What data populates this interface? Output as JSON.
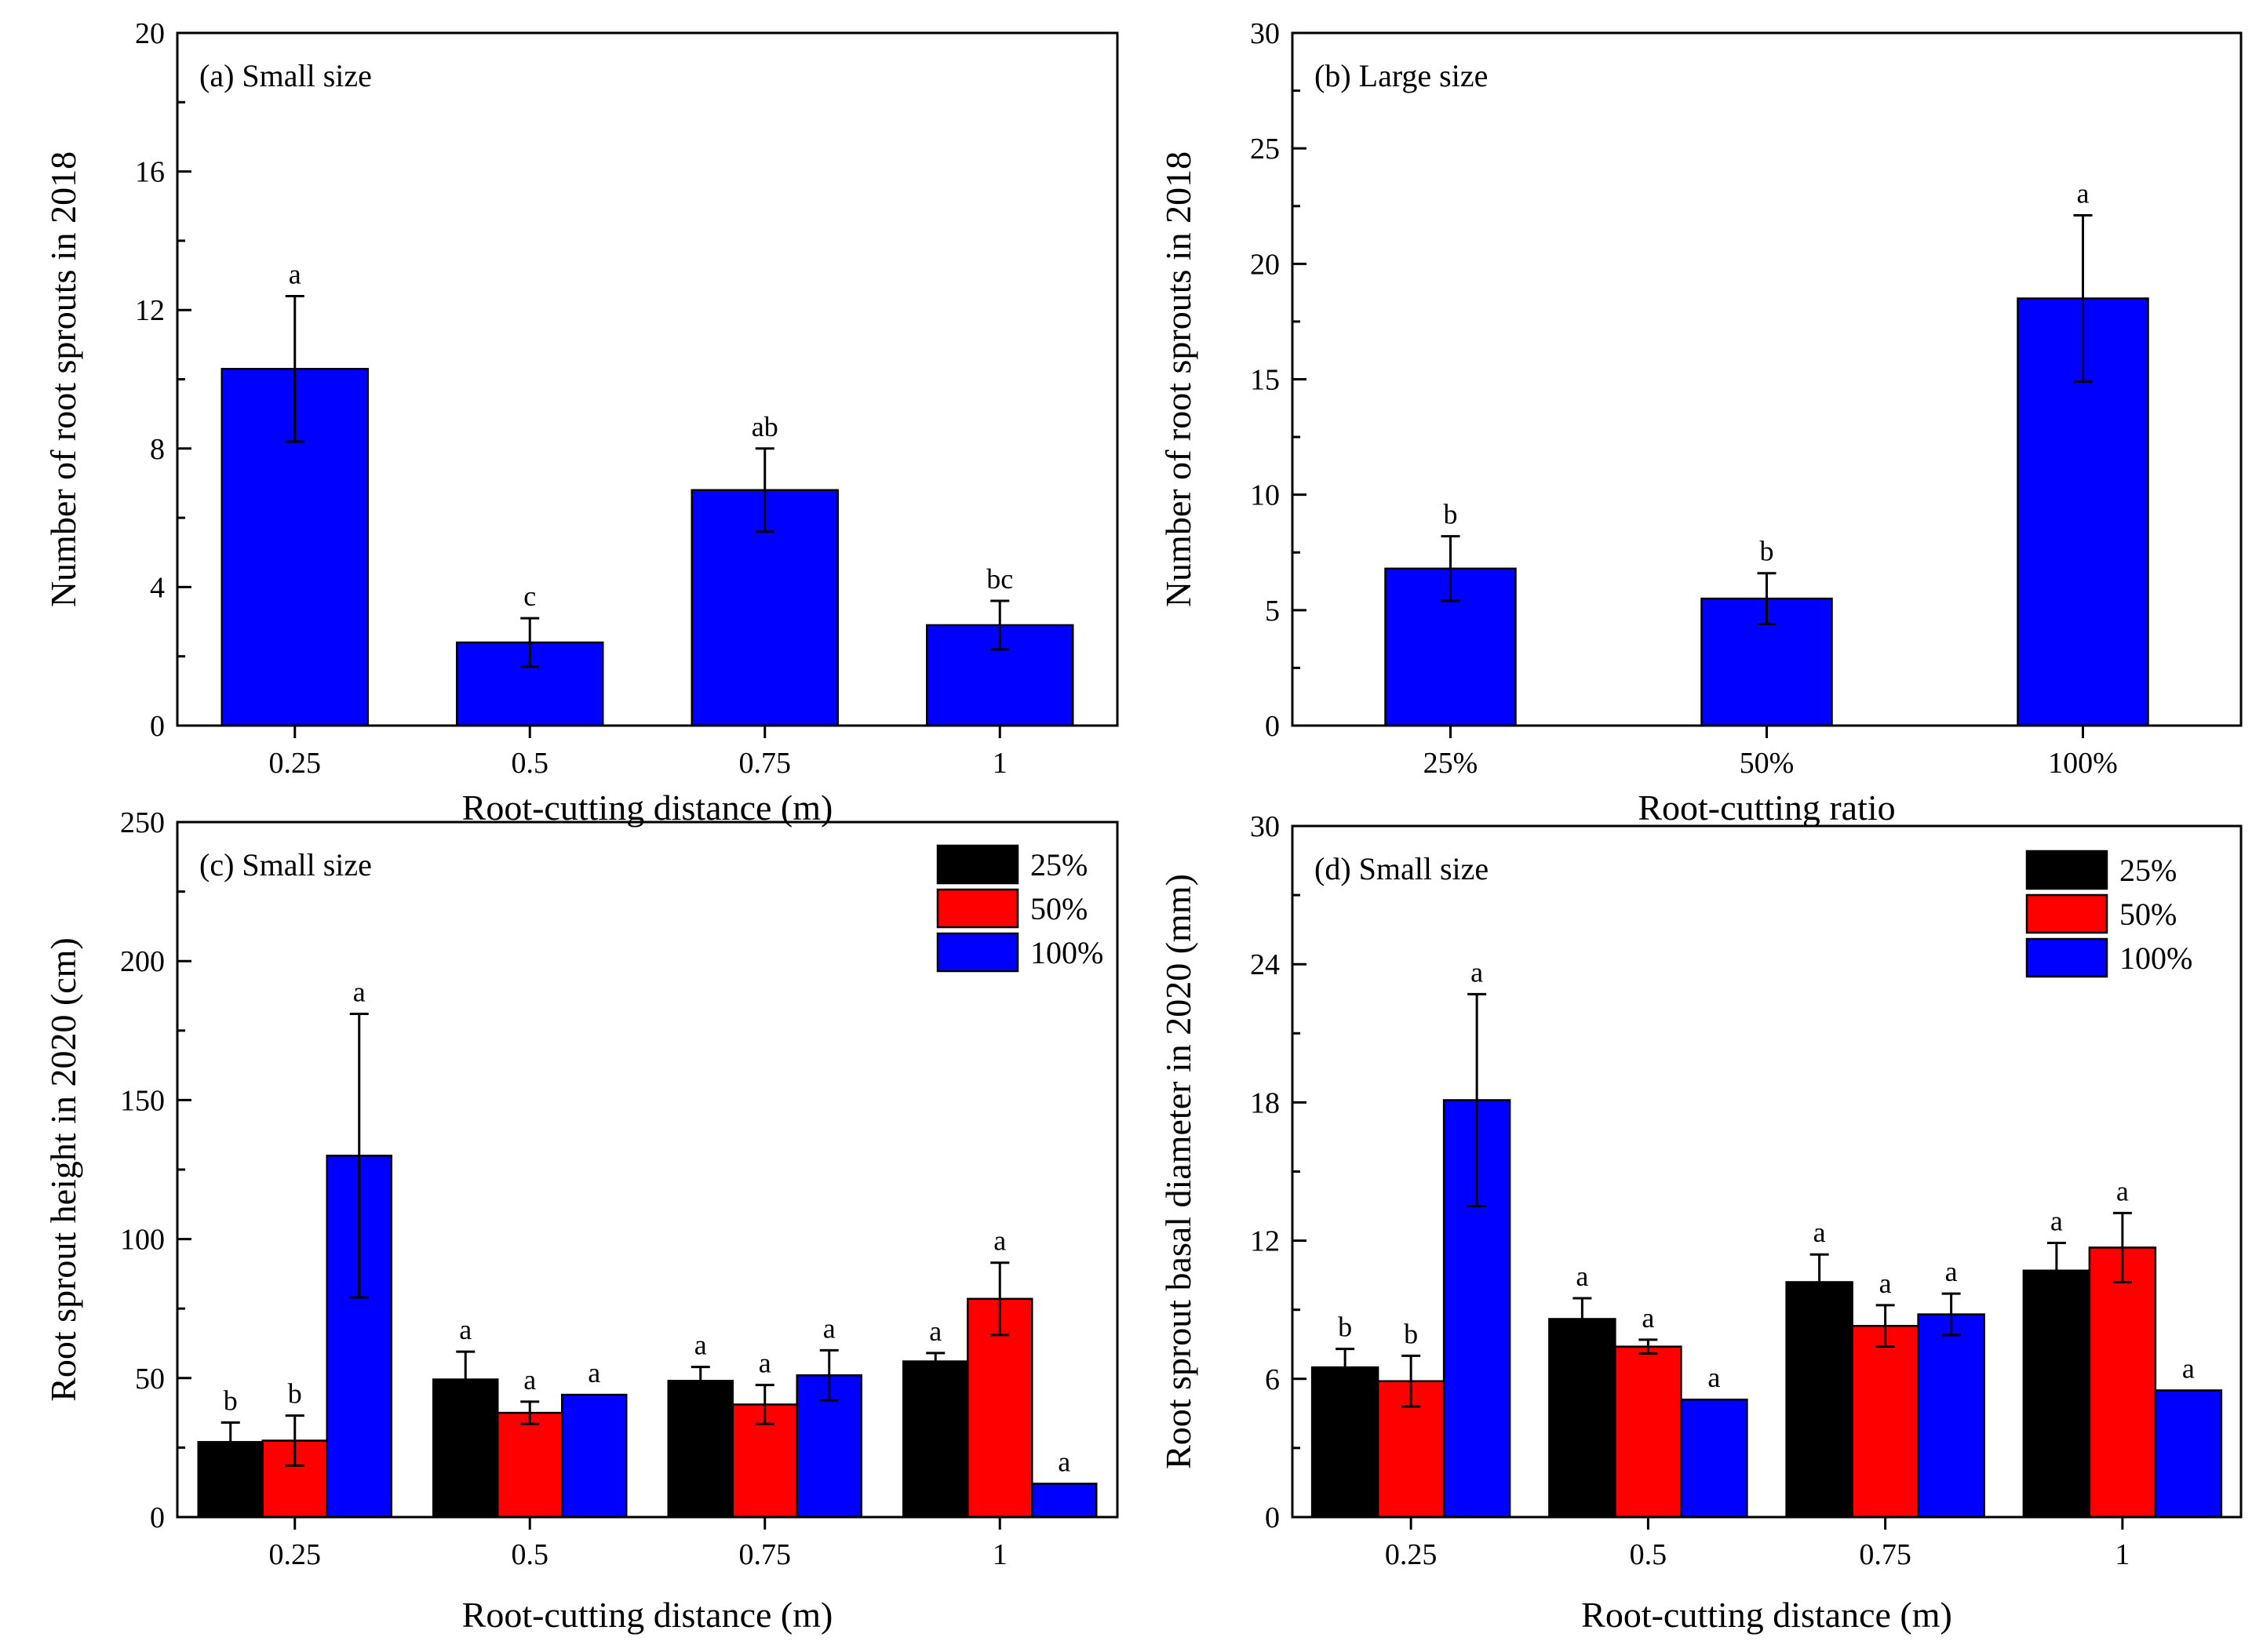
{
  "chart_data": [
    {
      "id": "a",
      "type": "bar",
      "title": "(a) Small size",
      "xlabel": "Root-cutting distance (m)",
      "ylabel": "Number of root sprouts in 2018",
      "categories": [
        "0.25",
        "0.5",
        "0.75",
        "1"
      ],
      "ylim": [
        0,
        20
      ],
      "yticks": [
        0,
        4,
        8,
        12,
        16,
        20
      ],
      "series": [
        {
          "name": "",
          "color": "#0000ff",
          "values": [
            10.3,
            2.4,
            6.8,
            2.9
          ],
          "errors": [
            2.1,
            0.7,
            1.2,
            0.7
          ],
          "letters": [
            "a",
            "c",
            "ab",
            "bc"
          ]
        }
      ]
    },
    {
      "id": "b",
      "type": "bar",
      "title": "(b) Large size",
      "xlabel": "Root-cutting ratio",
      "ylabel": "Number of root sprouts in 2018",
      "categories": [
        "25%",
        "50%",
        "100%"
      ],
      "ylim": [
        0,
        30
      ],
      "yticks": [
        0,
        5,
        10,
        15,
        20,
        25,
        30
      ],
      "series": [
        {
          "name": "",
          "color": "#0000ff",
          "values": [
            6.8,
            5.5,
            18.5
          ],
          "errors": [
            1.4,
            1.1,
            3.6
          ],
          "letters": [
            "b",
            "b",
            "a"
          ]
        }
      ]
    },
    {
      "id": "c",
      "type": "bar",
      "title": "(c) Small size",
      "xlabel": "Root-cutting distance (m)",
      "ylabel": "Root sprout height in 2020 (cm)",
      "categories": [
        "0.25",
        "0.5",
        "0.75",
        "1"
      ],
      "ylim": [
        0,
        250
      ],
      "yticks": [
        0,
        50,
        100,
        150,
        200,
        250
      ],
      "legend_position": "top-right",
      "series": [
        {
          "name": "25%",
          "color": "#000000",
          "values": [
            27,
            49.5,
            49,
            56
          ],
          "errors": [
            7,
            10,
            5,
            3
          ],
          "letters": [
            "b",
            "a",
            "a",
            "a"
          ]
        },
        {
          "name": "50%",
          "color": "#ff0000",
          "values": [
            27.5,
            37.5,
            40.5,
            78.5
          ],
          "errors": [
            9,
            4,
            7,
            13
          ],
          "letters": [
            "b",
            "a",
            "a",
            "a"
          ]
        },
        {
          "name": "100%",
          "color": "#0000ff",
          "values": [
            130,
            44,
            51,
            12
          ],
          "errors": [
            51,
            0,
            9,
            0
          ],
          "letters": [
            "a",
            "a",
            "a",
            "a"
          ]
        }
      ]
    },
    {
      "id": "d",
      "type": "bar",
      "title": "(d) Small size",
      "xlabel": "Root-cutting distance (m)",
      "ylabel": "Root sprout basal diameter in 2020 (mm)",
      "categories": [
        "0.25",
        "0.5",
        "0.75",
        "1"
      ],
      "ylim": [
        0,
        30
      ],
      "yticks": [
        0,
        6,
        12,
        18,
        24,
        30
      ],
      "legend_position": "top-right",
      "series": [
        {
          "name": "25%",
          "color": "#000000",
          "values": [
            6.5,
            8.6,
            10.2,
            10.7
          ],
          "errors": [
            0.8,
            0.9,
            1.2,
            1.2
          ],
          "letters": [
            "b",
            "a",
            "a",
            "a"
          ]
        },
        {
          "name": "50%",
          "color": "#ff0000",
          "values": [
            5.9,
            7.4,
            8.3,
            11.7
          ],
          "errors": [
            1.1,
            0.3,
            0.9,
            1.5
          ],
          "letters": [
            "b",
            "a",
            "a",
            "a"
          ]
        },
        {
          "name": "100%",
          "color": "#0000ff",
          "values": [
            18.1,
            5.1,
            8.8,
            5.5
          ],
          "errors": [
            4.6,
            0,
            0.9,
            0
          ],
          "letters": [
            "a",
            "a",
            "a",
            "a"
          ]
        }
      ]
    }
  ]
}
